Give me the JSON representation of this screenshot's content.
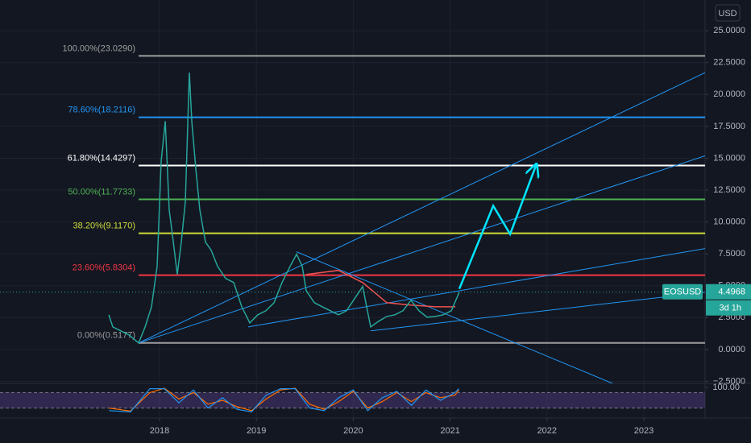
{
  "chart_data": {
    "type": "line",
    "symbol": "EOSUSD",
    "currency": "USD",
    "last_price": 4.4968,
    "countdown": "3d 1h",
    "xlim": [
      2016.353,
      2023.632
    ],
    "xticks": [
      2018,
      2019,
      2020,
      2021,
      2022,
      2023
    ],
    "ylim": [
      -2.66,
      27.41
    ],
    "yticks": [
      {
        "value": 25,
        "label": "25.0000"
      },
      {
        "value": 22.5,
        "label": "22.5000"
      },
      {
        "value": 20,
        "label": "20.0000"
      },
      {
        "value": 17.5,
        "label": "17.5000"
      },
      {
        "value": 15,
        "label": "15.0000"
      },
      {
        "value": 12.5,
        "label": "12.5000"
      },
      {
        "value": 10,
        "label": "10.0000"
      },
      {
        "value": 7.5,
        "label": "7.5000"
      },
      {
        "value": 5,
        "label": "5.0000"
      },
      {
        "value": 2.5,
        "label": "2.5000"
      },
      {
        "value": 0,
        "label": "0.0000"
      },
      {
        "value": -2.5,
        "label": "−2.5000"
      }
    ],
    "grid": true,
    "price": {
      "color": "#26a69a",
      "x": [
        2017.476,
        2017.518,
        2017.601,
        2017.684,
        2017.784,
        2017.851,
        2017.917,
        2017.975,
        2018.017,
        2018.059,
        2018.1,
        2018.142,
        2018.183,
        2018.225,
        2018.266,
        2018.308,
        2018.333,
        2018.375,
        2018.416,
        2018.474,
        2018.533,
        2018.599,
        2018.682,
        2018.766,
        2018.849,
        2018.932,
        2019.015,
        2019.098,
        2019.182,
        2019.265,
        2019.348,
        2019.415,
        2019.473,
        2019.514,
        2019.598,
        2019.681,
        2019.764,
        2019.847,
        2019.93,
        2020.014,
        2020.097,
        2020.138,
        2020.18,
        2020.263,
        2020.346,
        2020.43,
        2020.513,
        2020.596,
        2020.679,
        2020.762,
        2020.846,
        2020.929,
        2021.012,
        2021.095
      ],
      "values": [
        2.72,
        1.77,
        1.46,
        1.14,
        0.51,
        1.77,
        3.35,
        6.52,
        14.75,
        17.91,
        10.95,
        8.42,
        5.89,
        8.42,
        11.58,
        21.71,
        17.91,
        14.11,
        10.95,
        8.42,
        7.78,
        6.52,
        5.57,
        5.25,
        3.35,
        2.09,
        2.72,
        3.04,
        3.67,
        5.25,
        6.52,
        7.47,
        6.52,
        4.62,
        3.67,
        3.35,
        3.04,
        2.72,
        3.04,
        3.99,
        4.94,
        3.35,
        1.77,
        2.22,
        2.59,
        2.72,
        3.04,
        3.86,
        3.04,
        2.53,
        2.59,
        2.72,
        3.04,
        4.4968
      ]
    },
    "ma": {
      "color": "#ef5350",
      "x": [
        2019.514,
        2019.847,
        2020.097,
        2020.346,
        2020.596,
        2020.846,
        2021.054
      ],
      "values": [
        5.89,
        6.2,
        5.25,
        3.67,
        3.48,
        3.35,
        3.35
      ]
    },
    "fib_start": 2017.784,
    "levels": [
      {
        "label": "100.00%(23.0290)",
        "value": 23.029,
        "color": "#9e9e9e"
      },
      {
        "label": "78.60%(18.2116)",
        "value": 18.2116,
        "color": "#2196f3"
      },
      {
        "label": "61.80%(14.4297)",
        "value": 14.4297,
        "color": "#ffffff"
      },
      {
        "label": "50.00%(11.7733)",
        "value": 11.7733,
        "color": "#4caf50"
      },
      {
        "label": "38.20%(9.1170)",
        "value": 9.117,
        "color": "#cddc39"
      },
      {
        "label": "23.60%(5.8304)",
        "value": 5.8304,
        "color": "#f23645"
      },
      {
        "label": "0.00%(0.5177)",
        "value": 0.5177,
        "color": "#9e9e9e"
      }
    ],
    "trendlines": [
      {
        "x": [
          2017.784,
          2023.632
        ],
        "y": [
          0.51,
          21.71
        ],
        "color": "#2196f3"
      },
      {
        "x": [
          2017.784,
          2023.632
        ],
        "y": [
          0.51,
          15.19
        ],
        "color": "#2196f3"
      },
      {
        "x": [
          2018.915,
          2023.632
        ],
        "y": [
          1.77,
          7.91
        ],
        "color": "#2196f3"
      },
      {
        "x": [
          2020.18,
          2023.632
        ],
        "y": [
          1.46,
          4.49
        ],
        "color": "#2196f3"
      },
      {
        "x": [
          2019.415,
          2022.676
        ],
        "y": [
          7.66,
          -2.66
        ],
        "color": "#2196f3"
      }
    ],
    "forecast": {
      "x": [
        2021.095,
        2021.445,
        2021.62,
        2021.886
      ],
      "y": [
        4.75,
        11.27,
        9.05,
        14.43
      ],
      "color": "#00e5ff"
    },
    "stoch": {
      "ylim": [
        0,
        100
      ],
      "yticks": [
        {
          "value": 100,
          "label": "100.00"
        }
      ],
      "bands": [
        80,
        20
      ],
      "x": [
        2017.48,
        2017.7,
        2017.9,
        2018.05,
        2018.2,
        2018.35,
        2018.5,
        2018.65,
        2018.8,
        2018.95,
        2019.1,
        2019.25,
        2019.4,
        2019.55,
        2019.7,
        2019.85,
        2020.0,
        2020.15,
        2020.3,
        2020.45,
        2020.6,
        2020.75,
        2020.9,
        2021.05,
        2021.09
      ],
      "k": [
        10,
        5,
        95,
        95,
        40,
        90,
        20,
        60,
        15,
        5,
        70,
        95,
        95,
        20,
        10,
        60,
        90,
        10,
        60,
        85,
        30,
        90,
        50,
        80,
        95
      ],
      "d": [
        20,
        8,
        80,
        97,
        55,
        80,
        35,
        50,
        25,
        10,
        55,
        90,
        97,
        35,
        15,
        45,
        85,
        20,
        45,
        80,
        45,
        80,
        60,
        70,
        90
      ],
      "k_color": "#2196f3",
      "d_color": "#ff6d00"
    }
  }
}
